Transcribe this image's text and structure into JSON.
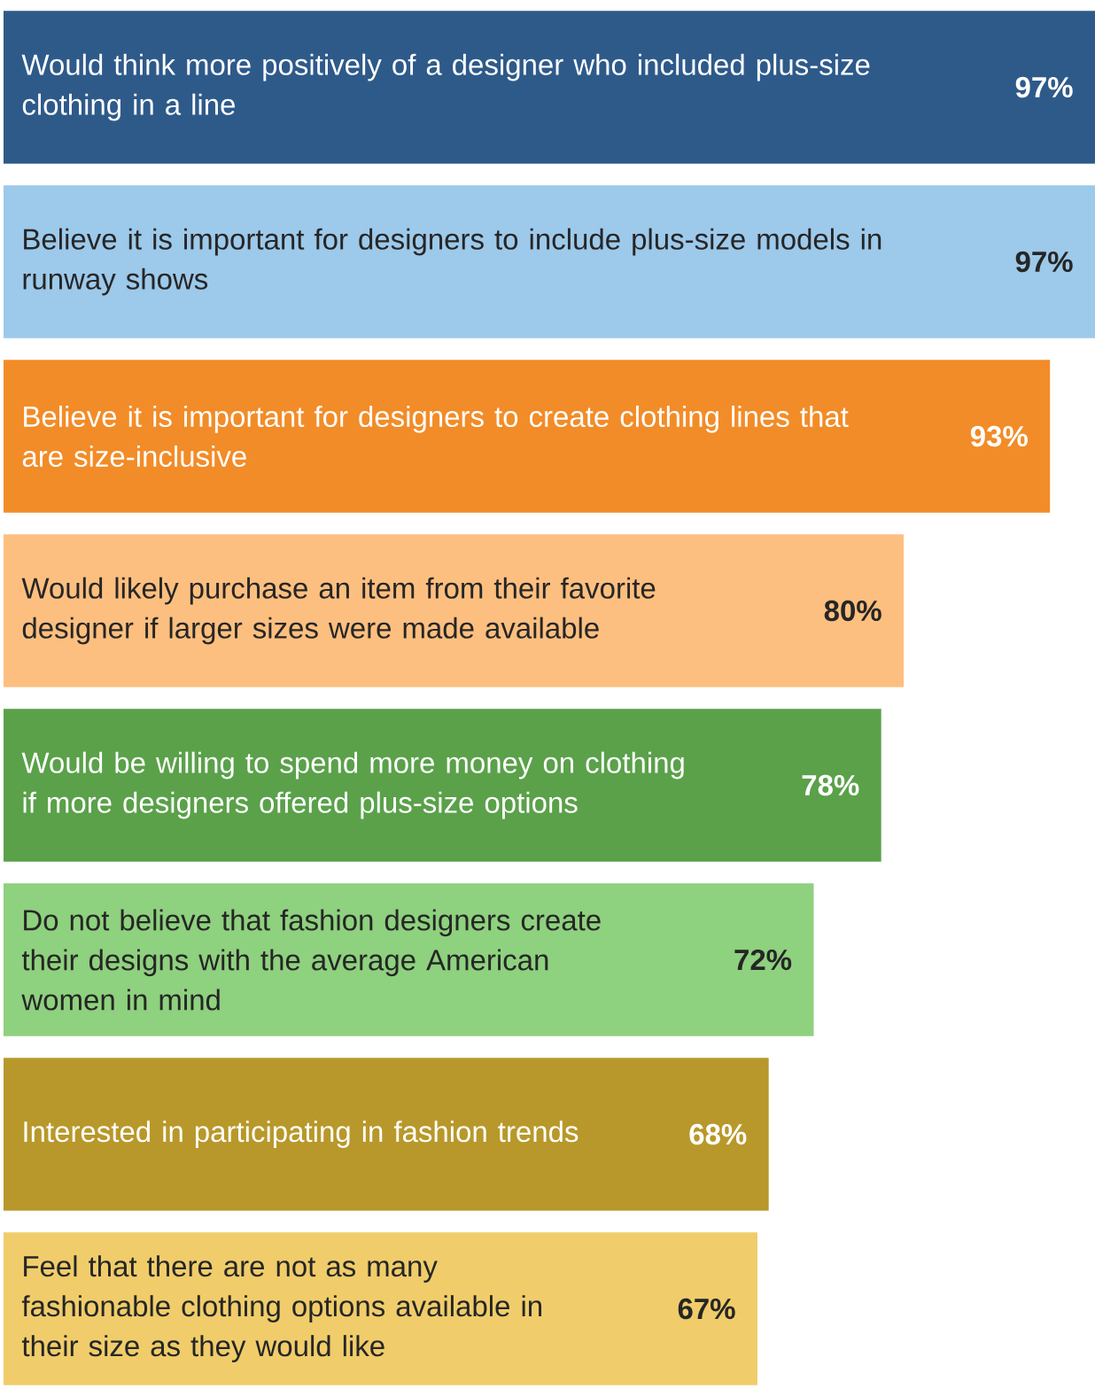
{
  "chart_data": {
    "type": "bar",
    "orientation": "horizontal",
    "categories": [
      "Would think more positively of a designer who included plus-size clothing in a line",
      "Believe it is important for designers to include plus-size models in runway shows",
      "Believe it is important for designers to create clothing lines that are size-inclusive",
      "Would likely purchase an item from their favorite designer if larger sizes were made available",
      "Would be willing to spend more money on clothing if more designers offered plus-size options",
      "Do not believe that fashion designers create their designs with the average American women in mind",
      "Interested in participating in fashion trends",
      "Feel that there are not as many fashionable clothing options available in their size as they would like"
    ],
    "values": [
      97,
      97,
      93,
      80,
      78,
      72,
      68,
      67
    ],
    "value_labels": [
      "97%",
      "97%",
      "93%",
      "80%",
      "78%",
      "72%",
      "68%",
      "67%"
    ],
    "colors": [
      "#2e5a8a",
      "#9dc9ea",
      "#f28c28",
      "#fdbf7f",
      "#5aa14a",
      "#8ed17e",
      "#b8982a",
      "#f0cd6a"
    ]
  }
}
